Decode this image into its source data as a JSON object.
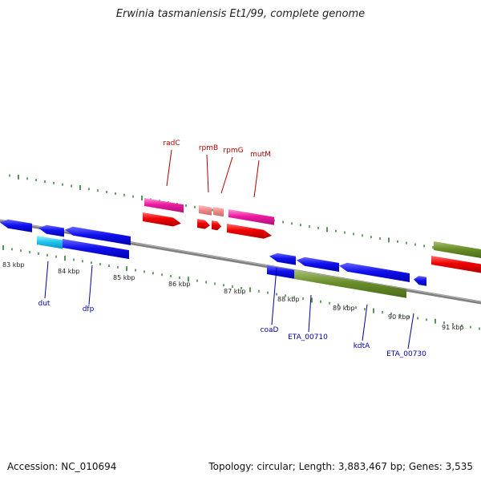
{
  "title": "Erwinia tasmaniensis Et1/99, complete genome",
  "footer": {
    "accession": "Accession: NC_010694",
    "summary": "Topology: circular; Length: 3,883,467 bp; Genes: 3,535"
  },
  "colors": {
    "backbone": "#808080",
    "tick": "#2a7a2a",
    "label_top": "#b00000",
    "label_bottom": "#0000a0"
  },
  "ticks": [
    {
      "label": "83 kbp"
    },
    {
      "label": "84 kbp"
    },
    {
      "label": "85 kbp"
    },
    {
      "label": "86 kbp"
    },
    {
      "label": "87 kbp"
    },
    {
      "label": "88 kbp"
    },
    {
      "label": "89 kbp"
    },
    {
      "label": "90 kbp"
    },
    {
      "label": "91 kbp"
    }
  ],
  "top_labels": [
    {
      "text": "radC"
    },
    {
      "text": "rpmB"
    },
    {
      "text": "rpmG"
    },
    {
      "text": "mutM"
    }
  ],
  "bottom_labels": [
    {
      "text": "dut"
    },
    {
      "text": "dfp"
    },
    {
      "text": "coaD"
    },
    {
      "text": "ETA_00710"
    },
    {
      "text": "kdtA"
    },
    {
      "text": "ETA_00730"
    }
  ]
}
